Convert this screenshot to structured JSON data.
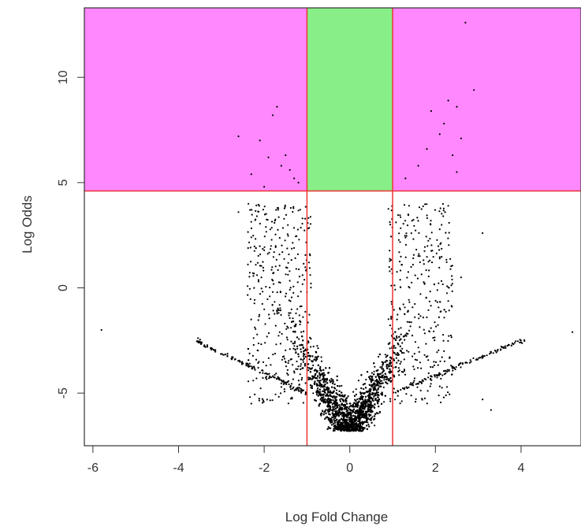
{
  "chart_data": {
    "type": "scatter",
    "title": "",
    "xlabel": "Log Fold Change",
    "ylabel": "Log Odds",
    "xlim": [
      -6.2,
      5.4
    ],
    "ylim": [
      -7.5,
      13.3
    ],
    "xticks": [
      -6,
      -4,
      -2,
      0,
      2,
      4
    ],
    "xtick_labels": [
      "-6",
      "-4",
      "-2",
      "0",
      "2",
      "4"
    ],
    "yticks": [
      -5,
      0,
      5,
      10
    ],
    "ytick_labels": [
      "-5",
      "0",
      "5",
      "10"
    ],
    "grid": false,
    "colors": {
      "significant_region": "#ff88ff",
      "center_region": "#88ee88",
      "threshold_line": "#ee3333",
      "points": "#000000"
    },
    "thresholds": {
      "log_fold_change": [
        -1,
        1
      ],
      "log_odds": 4.6
    },
    "highlight_regions": [
      {
        "name": "left-significant",
        "x": [
          -6.2,
          -1
        ],
        "y": [
          4.6,
          13.3
        ],
        "color": "#ff88ff"
      },
      {
        "name": "center",
        "x": [
          -1,
          1
        ],
        "y": [
          4.6,
          13.3
        ],
        "color": "#88ee88"
      },
      {
        "name": "right-significant",
        "x": [
          1,
          5.4
        ],
        "y": [
          4.6,
          13.3
        ],
        "color": "#ff88ff"
      }
    ],
    "outlier_points": [
      {
        "x": -2.6,
        "y": 7.2
      },
      {
        "x": -2.3,
        "y": 5.4
      },
      {
        "x": -2.1,
        "y": 7.0
      },
      {
        "x": -2.0,
        "y": 4.8
      },
      {
        "x": -1.9,
        "y": 6.2
      },
      {
        "x": -1.8,
        "y": 8.2
      },
      {
        "x": -1.7,
        "y": 8.6
      },
      {
        "x": -1.6,
        "y": 5.8
      },
      {
        "x": -1.5,
        "y": 6.3
      },
      {
        "x": -1.4,
        "y": 5.6
      },
      {
        "x": -1.3,
        "y": 5.2
      },
      {
        "x": -1.2,
        "y": 5.0
      },
      {
        "x": 1.3,
        "y": 5.2
      },
      {
        "x": 1.6,
        "y": 5.8
      },
      {
        "x": 1.8,
        "y": 6.6
      },
      {
        "x": 1.9,
        "y": 8.4
      },
      {
        "x": 2.1,
        "y": 7.3
      },
      {
        "x": 2.2,
        "y": 7.8
      },
      {
        "x": 2.3,
        "y": 8.9
      },
      {
        "x": 2.4,
        "y": 6.3
      },
      {
        "x": 2.5,
        "y": 8.6
      },
      {
        "x": 2.6,
        "y": 7.1
      },
      {
        "x": 2.7,
        "y": 12.6
      },
      {
        "x": 2.9,
        "y": 9.4
      },
      {
        "x": 2.5,
        "y": 5.5
      },
      {
        "x": 2.3,
        "y": 3.9
      },
      {
        "x": 2.6,
        "y": 0.5
      },
      {
        "x": 3.1,
        "y": 2.6
      },
      {
        "x": -5.8,
        "y": -2.0
      },
      {
        "x": 5.2,
        "y": -2.1
      },
      {
        "x": -2.3,
        "y": -5.5
      },
      {
        "x": 3.1,
        "y": -5.3
      },
      {
        "x": 3.3,
        "y": -5.8
      },
      {
        "x": -2.6,
        "y": 3.6
      },
      {
        "x": -2.3,
        "y": 2.4
      }
    ]
  }
}
